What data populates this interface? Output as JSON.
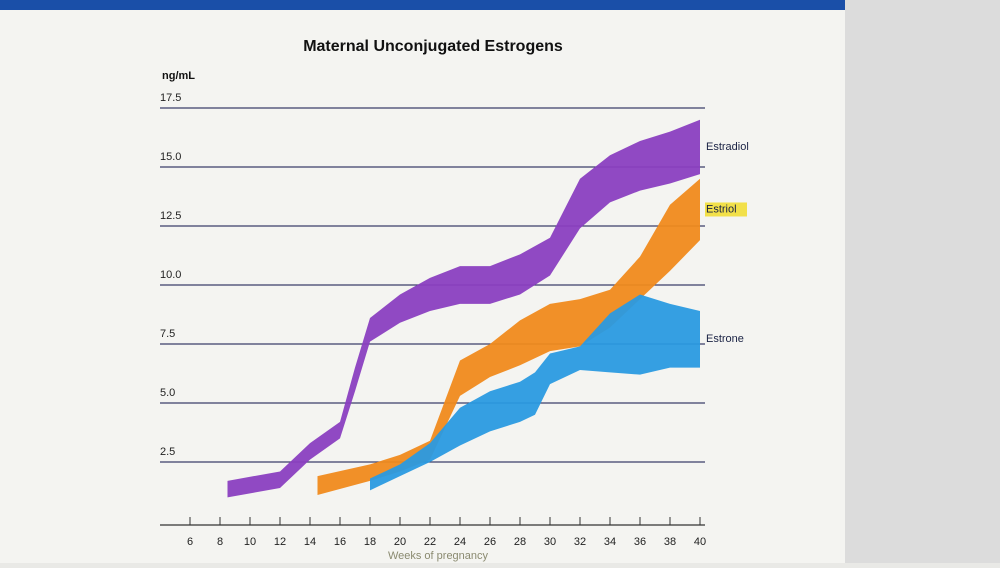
{
  "chart_data": {
    "type": "range-area",
    "title": "Maternal Unconjugated Estrogens",
    "y_label": "ng/mL",
    "x_label": "Weeks of pregnancy",
    "xlim": [
      4,
      40
    ],
    "xticks": [
      6,
      8,
      10,
      12,
      14,
      16,
      18,
      20,
      22,
      24,
      26,
      28,
      30,
      32,
      34,
      36,
      38,
      40
    ],
    "ylim": [
      0,
      17.5
    ],
    "yticks": [
      2.5,
      {
        "value": 5,
        "label": "5.0"
      },
      7.5,
      {
        "value": 10,
        "label": "10.0"
      },
      12.5,
      {
        "value": 15,
        "label": "15.0"
      },
      17.5
    ],
    "grid": true,
    "series": [
      {
        "name": "Estradiol",
        "color": "#8a3fc0",
        "x": [
          8.5,
          12,
          14,
          16,
          17,
          18,
          20,
          22,
          24,
          26,
          28,
          30,
          32,
          34,
          36,
          38,
          40
        ],
        "high": [
          1.7,
          2.1,
          3.3,
          4.2,
          6.5,
          8.6,
          9.6,
          10.3,
          10.8,
          10.8,
          11.3,
          12,
          14.5,
          15.5,
          16.1,
          16.5,
          17
        ],
        "low": [
          1.0,
          1.4,
          2.6,
          3.5,
          5.5,
          7.6,
          8.4,
          8.9,
          9.2,
          9.2,
          9.6,
          10.4,
          12.4,
          13.5,
          14,
          14.3,
          14.7
        ]
      },
      {
        "name": "Estriol",
        "color": "#f08a1c",
        "x": [
          14.5,
          18,
          20,
          22,
          24,
          26,
          28,
          30,
          32,
          34,
          36,
          38,
          40
        ],
        "high": [
          1.9,
          2.4,
          2.8,
          3.4,
          6.8,
          7.5,
          8.5,
          9.2,
          9.4,
          9.8,
          11.2,
          13.4,
          14.5
        ],
        "low": [
          1.1,
          1.7,
          2.1,
          2.6,
          5.3,
          6.1,
          6.6,
          7.2,
          7.4,
          8.2,
          9.4,
          10.6,
          11.9
        ]
      },
      {
        "name": "Estrone",
        "color": "#2a9ae0",
        "x": [
          18,
          20,
          22,
          24,
          26,
          28,
          29,
          30,
          32,
          34,
          36,
          38,
          40
        ],
        "high": [
          1.8,
          2.4,
          3.3,
          4.8,
          5.5,
          5.9,
          6.3,
          7.1,
          7.4,
          8.8,
          9.6,
          9.2,
          8.9
        ],
        "low": [
          1.3,
          1.9,
          2.5,
          3.2,
          3.8,
          4.2,
          4.5,
          5.8,
          6.4,
          6.3,
          6.2,
          6.5,
          6.5
        ]
      }
    ]
  }
}
